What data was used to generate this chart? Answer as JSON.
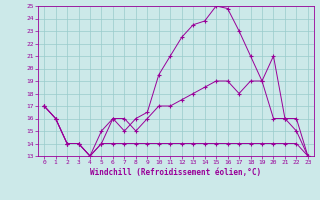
{
  "title": "",
  "xlabel": "Windchill (Refroidissement éolien,°C)",
  "ylabel": "",
  "xlim": [
    -0.5,
    23.5
  ],
  "ylim": [
    13,
    25
  ],
  "xticks": [
    0,
    1,
    2,
    3,
    4,
    5,
    6,
    7,
    8,
    9,
    10,
    11,
    12,
    13,
    14,
    15,
    16,
    17,
    18,
    19,
    20,
    21,
    22,
    23
  ],
  "yticks": [
    13,
    14,
    15,
    16,
    17,
    18,
    19,
    20,
    21,
    22,
    23,
    24,
    25
  ],
  "bg_color": "#cce9e9",
  "line_color": "#990099",
  "grid_color": "#99cccc",
  "line1_x": [
    0,
    1,
    2,
    3,
    4,
    5,
    6,
    7,
    8,
    9,
    10,
    11,
    12,
    13,
    14,
    15,
    16,
    17,
    18,
    19,
    20,
    21,
    22,
    23
  ],
  "line1_y": [
    17,
    16,
    14,
    14,
    13,
    14,
    14,
    14,
    14,
    14,
    14,
    14,
    14,
    14,
    14,
    14,
    14,
    14,
    14,
    14,
    14,
    14,
    14,
    13
  ],
  "line2_x": [
    0,
    1,
    2,
    3,
    4,
    5,
    6,
    7,
    8,
    9,
    10,
    11,
    12,
    13,
    14,
    15,
    16,
    17,
    18,
    19,
    20,
    21,
    22,
    23
  ],
  "line2_y": [
    17,
    16,
    14,
    14,
    13,
    15,
    16,
    16,
    15,
    16,
    17,
    17,
    17.5,
    18,
    18.5,
    19,
    19,
    18,
    19,
    19,
    21,
    16,
    16,
    13
  ],
  "line3_x": [
    0,
    1,
    2,
    3,
    4,
    5,
    6,
    7,
    8,
    9,
    10,
    11,
    12,
    13,
    14,
    15,
    16,
    17,
    18,
    19,
    20,
    21,
    22,
    23
  ],
  "line3_y": [
    17,
    16,
    14,
    14,
    13,
    14,
    16,
    15,
    16,
    16.5,
    19.5,
    21,
    22.5,
    23.5,
    23.8,
    25,
    24.8,
    23,
    21,
    19,
    16,
    16,
    15,
    13
  ],
  "marker": "+",
  "markersize": 3,
  "linewidth": 0.7,
  "tick_fontsize": 4.5,
  "xlabel_fontsize": 5.5
}
